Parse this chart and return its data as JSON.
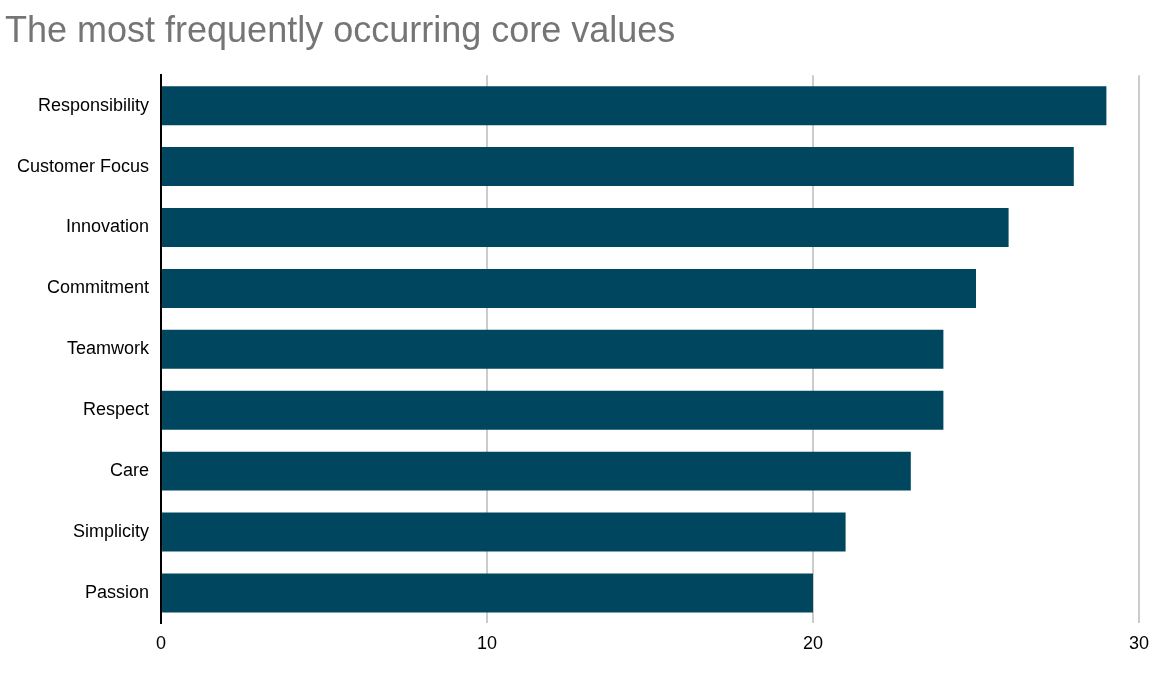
{
  "chart_data": {
    "type": "bar",
    "orientation": "horizontal",
    "title": "The most frequently occurring core values",
    "categories": [
      "Responsibility",
      "Customer Focus",
      "Innovation",
      "Commitment",
      "Teamwork",
      "Respect",
      "Care",
      "Simplicity",
      "Passion"
    ],
    "values": [
      29,
      28,
      26,
      25,
      24,
      24,
      23,
      21,
      20
    ],
    "color": "#01465f",
    "xlim": [
      0,
      30
    ],
    "xticks": [
      0,
      10,
      20,
      30
    ],
    "grid": "x",
    "legend": false
  }
}
